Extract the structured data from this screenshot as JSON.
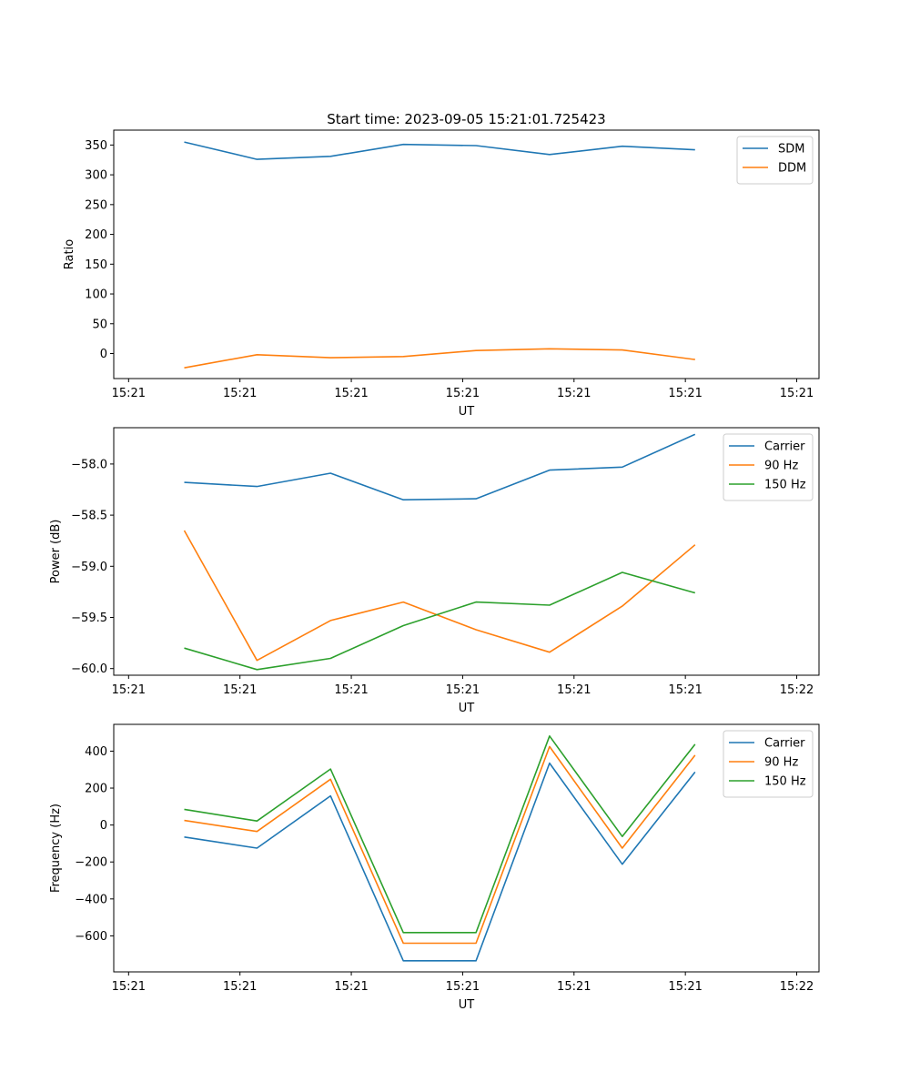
{
  "chart_data": [
    {
      "type": "line",
      "title": "Start time: 2023-09-05 15:21:01.725423",
      "xlabel": "UT",
      "ylabel": "Ratio",
      "xlim": [
        -0.2,
        9.3
      ],
      "ylim": [
        -42,
        375
      ],
      "x_ticks": [
        0,
        1.5,
        3,
        4.5,
        6,
        7.5,
        9
      ],
      "x_tick_labels": [
        "15:21",
        "15:21",
        "15:21",
        "15:21",
        "15:21",
        "15:21",
        "15:21"
      ],
      "y_ticks": [
        0,
        50,
        100,
        150,
        200,
        250,
        300,
        350
      ],
      "y_tick_labels": [
        "0",
        "50",
        "100",
        "150",
        "200",
        "250",
        "300",
        "350"
      ],
      "legend_position": "top-right",
      "x": [
        0.75,
        1.73,
        2.72,
        3.7,
        4.68,
        5.67,
        6.65,
        7.63
      ],
      "series": [
        {
          "name": "SDM",
          "color": "#1f77b4",
          "values": [
            355,
            326,
            331,
            351,
            349,
            334,
            348,
            342
          ]
        },
        {
          "name": "DDM",
          "color": "#ff7f0e",
          "values": [
            -24,
            -2,
            -7,
            -5,
            5,
            8,
            6,
            -10
          ]
        }
      ]
    },
    {
      "type": "line",
      "title": "",
      "xlabel": "UT",
      "ylabel": "Power (dB)",
      "xlim": [
        -0.2,
        9.3
      ],
      "ylim": [
        -60.065,
        -57.645
      ],
      "x_ticks": [
        0,
        1.5,
        3,
        4.5,
        6,
        7.5,
        9
      ],
      "x_tick_labels": [
        "15:21",
        "15:21",
        "15:21",
        "15:21",
        "15:21",
        "15:21",
        "15:22"
      ],
      "y_ticks": [
        -60.0,
        -59.5,
        -59.0,
        -58.5,
        -58.0
      ],
      "y_tick_labels": [
        "−60.0",
        "−59.5",
        "−59.0",
        "−58.5",
        "−58.0"
      ],
      "legend_position": "top-right",
      "x": [
        0.75,
        1.73,
        2.72,
        3.7,
        4.68,
        5.67,
        6.65,
        7.63
      ],
      "series": [
        {
          "name": "Carrier",
          "color": "#1f77b4",
          "values": [
            -58.18,
            -58.22,
            -58.09,
            -58.35,
            -58.34,
            -58.06,
            -58.03,
            -57.71
          ]
        },
        {
          "name": "90 Hz",
          "color": "#ff7f0e",
          "values": [
            -58.65,
            -59.92,
            -59.53,
            -59.35,
            -59.62,
            -59.84,
            -59.39,
            -58.79
          ]
        },
        {
          "name": "150 Hz",
          "color": "#2ca02c",
          "values": [
            -59.8,
            -60.01,
            -59.9,
            -59.58,
            -59.35,
            -59.38,
            -59.06,
            -59.26
          ]
        }
      ]
    },
    {
      "type": "line",
      "title": "",
      "xlabel": "UT",
      "ylabel": "Frequency (Hz)",
      "xlim": [
        -0.2,
        9.3
      ],
      "ylim": [
        -795,
        545
      ],
      "x_ticks": [
        0,
        1.5,
        3,
        4.5,
        6,
        7.5,
        9
      ],
      "x_tick_labels": [
        "15:21",
        "15:21",
        "15:21",
        "15:21",
        "15:21",
        "15:21",
        "15:22"
      ],
      "y_ticks": [
        -600,
        -400,
        -200,
        0,
        200,
        400
      ],
      "y_tick_labels": [
        "−600",
        "−400",
        "−200",
        "0",
        "200",
        "400"
      ],
      "legend_position": "top-right",
      "x": [
        0.75,
        1.73,
        2.72,
        3.7,
        4.68,
        5.67,
        6.65,
        7.63
      ],
      "series": [
        {
          "name": "Carrier",
          "color": "#1f77b4",
          "values": [
            -65,
            -125,
            158,
            -735,
            -735,
            335,
            -212,
            287
          ]
        },
        {
          "name": "90 Hz",
          "color": "#ff7f0e",
          "values": [
            25,
            -35,
            248,
            -640,
            -640,
            425,
            -125,
            378
          ]
        },
        {
          "name": "150 Hz",
          "color": "#2ca02c",
          "values": [
            85,
            22,
            303,
            -582,
            -582,
            482,
            -62,
            437
          ]
        }
      ]
    }
  ]
}
